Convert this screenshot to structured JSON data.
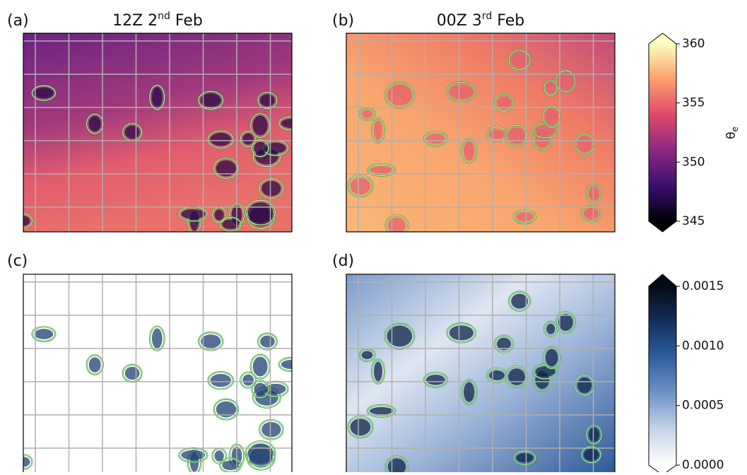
{
  "panels": [
    {
      "label": "(a)",
      "title": {
        "text": "12Z 2",
        "sup": "nd",
        "tail": " Feb"
      }
    },
    {
      "label": "(b)",
      "title": {
        "text": "00Z 3",
        "sup": "rd",
        "tail": " Feb"
      }
    },
    {
      "label": "(c)"
    },
    {
      "label": "(d)"
    }
  ],
  "colorbars": [
    {
      "label": "θ",
      "label_sub": "e",
      "lim": [
        345,
        360
      ],
      "ticks": [
        345,
        350,
        355,
        360
      ],
      "colors": [
        "#000004",
        "#3b0f70",
        "#8c2981",
        "#de4968",
        "#fe9f6d",
        "#fcfdbf"
      ]
    },
    {
      "lim": [
        0,
        0.0015
      ],
      "ticks": [
        {
          "value": 0,
          "label": "0.0000"
        },
        {
          "value": 0.0005,
          "label": "0.0005"
        },
        {
          "value": 0.001,
          "label": "0.0010"
        },
        {
          "value": 0.0015,
          "label": "0.0015"
        }
      ],
      "colors": [
        "#ffffff",
        "#c6d3e6",
        "#6e95c8",
        "#2f5fa0",
        "#13305c",
        "#050a14"
      ]
    }
  ]
}
